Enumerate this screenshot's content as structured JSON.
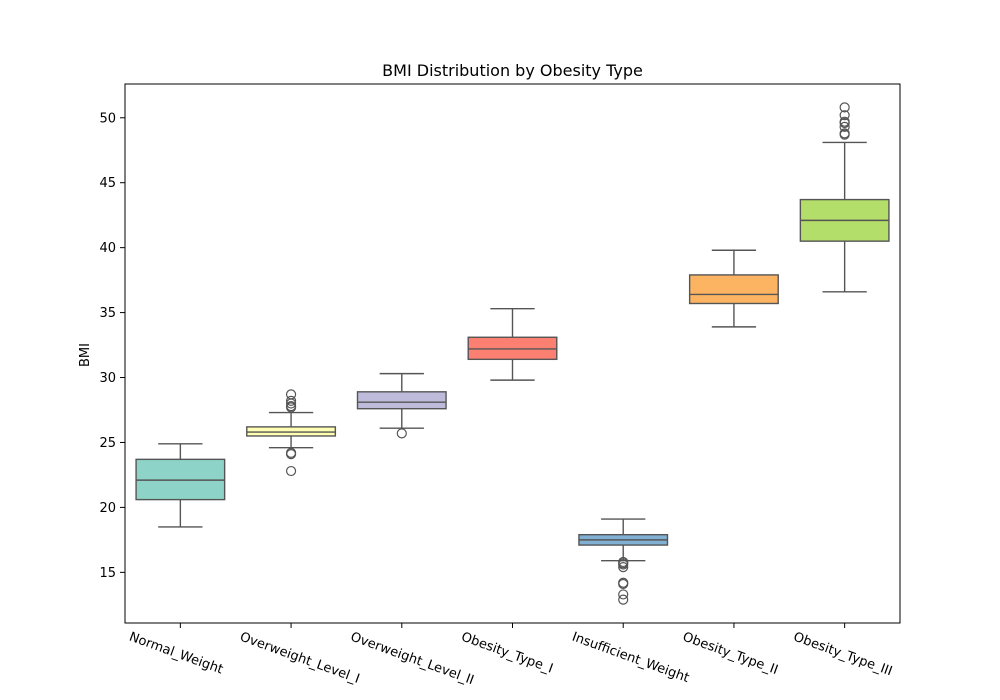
{
  "chart_data": {
    "type": "box",
    "title": "BMI Distribution by Obesity Type",
    "xlabel": "",
    "ylabel": "BMI",
    "ylim": [
      11.1,
      52.6
    ],
    "yticks": [
      15,
      20,
      25,
      30,
      35,
      40,
      45,
      50
    ],
    "grid": false,
    "legend": "none",
    "categories": [
      "Normal_Weight",
      "Overweight_Level_I",
      "Overweight_Level_II",
      "Obesity_Type_I",
      "Insufficient_Weight",
      "Obesity_Type_II",
      "Obesity_Type_III"
    ],
    "boxes": [
      {
        "category": "Normal_Weight",
        "whisker_low": 18.5,
        "q1": 20.6,
        "median": 22.1,
        "q3": 23.7,
        "whisker_high": 24.9,
        "outliers": [],
        "color": "#8dd3c7"
      },
      {
        "category": "Overweight_Level_I",
        "whisker_low": 24.6,
        "q1": 25.5,
        "median": 25.8,
        "q3": 26.2,
        "whisker_high": 27.3,
        "outliers": [
          22.8,
          24.1,
          24.2,
          27.7,
          27.8,
          28.0,
          28.2,
          28.7
        ],
        "color": "#ffffb3"
      },
      {
        "category": "Overweight_Level_II",
        "whisker_low": 26.1,
        "q1": 27.6,
        "median": 28.1,
        "q3": 28.9,
        "whisker_high": 30.3,
        "outliers": [
          25.7
        ],
        "color": "#bebada"
      },
      {
        "category": "Obesity_Type_I",
        "whisker_low": 29.8,
        "q1": 31.4,
        "median": 32.2,
        "q3": 33.1,
        "whisker_high": 35.3,
        "outliers": [],
        "color": "#fb8072"
      },
      {
        "category": "Insufficient_Weight",
        "whisker_low": 15.9,
        "q1": 17.1,
        "median": 17.5,
        "q3": 17.9,
        "whisker_high": 19.1,
        "outliers": [
          12.9,
          13.3,
          14.1,
          14.2,
          15.4,
          15.6,
          15.7,
          15.8
        ],
        "color": "#80b1d3"
      },
      {
        "category": "Obesity_Type_II",
        "whisker_low": 33.9,
        "q1": 35.7,
        "median": 36.4,
        "q3": 37.9,
        "whisker_high": 39.8,
        "outliers": [],
        "color": "#fdb462"
      },
      {
        "category": "Obesity_Type_III",
        "whisker_low": 36.6,
        "q1": 40.5,
        "median": 42.1,
        "q3": 43.7,
        "whisker_high": 48.1,
        "outliers": [
          48.7,
          48.8,
          49.3,
          49.6,
          49.7,
          50.2,
          50.8
        ],
        "color": "#b3de69"
      }
    ]
  }
}
